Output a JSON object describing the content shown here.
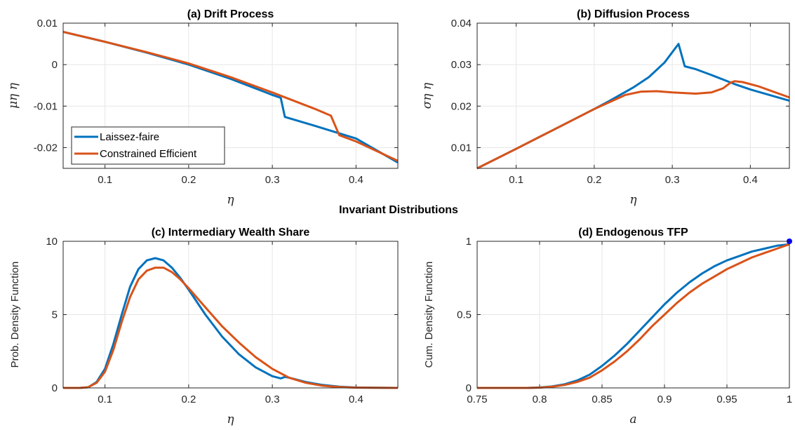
{
  "suptitle": "Invariant Distributions",
  "chart_data": [
    {
      "id": "a",
      "type": "line",
      "title": "(a) Drift Process",
      "xlabel": "η",
      "ylabel": "μη η",
      "xlim": [
        0.05,
        0.45
      ],
      "ylim": [
        -0.025,
        0.01
      ],
      "xticks": [
        0.1,
        0.2,
        0.3,
        0.4
      ],
      "xtick_labels": [
        "0.1",
        "0.2",
        "0.3",
        "0.4"
      ],
      "yticks": [
        -0.02,
        -0.01,
        0,
        0.01
      ],
      "ytick_labels": [
        "-0.02",
        "-0.01",
        "0",
        "0.01"
      ],
      "grid": true,
      "legend": {
        "position": "bottom-left",
        "entries": [
          "Laissez-faire",
          "Constrained Efficient"
        ]
      },
      "series": [
        {
          "name": "Laissez-faire",
          "color": "#0072BD",
          "x": [
            0.05,
            0.1,
            0.15,
            0.2,
            0.25,
            0.3,
            0.31,
            0.315,
            0.35,
            0.4,
            0.45
          ],
          "y": [
            0.0079,
            0.0055,
            0.0029,
            0.0,
            -0.0034,
            -0.0073,
            -0.008,
            -0.0126,
            -0.0147,
            -0.0178,
            -0.0236
          ]
        },
        {
          "name": "Constrained Efficient",
          "color": "#D95319",
          "x": [
            0.05,
            0.1,
            0.15,
            0.2,
            0.25,
            0.3,
            0.35,
            0.37,
            0.38,
            0.4,
            0.45
          ],
          "y": [
            0.0079,
            0.0055,
            0.003,
            0.0003,
            -0.003,
            -0.0067,
            -0.0106,
            -0.0123,
            -0.017,
            -0.0185,
            -0.0232
          ]
        }
      ]
    },
    {
      "id": "b",
      "type": "line",
      "title": "(b) Diffusion Process",
      "xlabel": "η",
      "ylabel": "ση η",
      "xlim": [
        0.05,
        0.45
      ],
      "ylim": [
        0.005,
        0.04
      ],
      "xticks": [
        0.1,
        0.2,
        0.3,
        0.4
      ],
      "xtick_labels": [
        "0.1",
        "0.2",
        "0.3",
        "0.4"
      ],
      "yticks": [
        0.01,
        0.02,
        0.03,
        0.04
      ],
      "ytick_labels": [
        "0.01",
        "0.02",
        "0.03",
        "0.04"
      ],
      "grid": true,
      "series": [
        {
          "name": "Laissez-faire",
          "color": "#0072BD",
          "x": [
            0.05,
            0.1,
            0.15,
            0.2,
            0.22,
            0.25,
            0.27,
            0.29,
            0.308,
            0.316,
            0.33,
            0.35,
            0.38,
            0.4,
            0.45
          ],
          "y": [
            0.005,
            0.0097,
            0.0145,
            0.0193,
            0.0213,
            0.0245,
            0.027,
            0.0305,
            0.035,
            0.0296,
            0.0289,
            0.0275,
            0.0253,
            0.024,
            0.0213
          ]
        },
        {
          "name": "Constrained Efficient",
          "color": "#D95319",
          "x": [
            0.05,
            0.1,
            0.15,
            0.2,
            0.22,
            0.24,
            0.26,
            0.28,
            0.3,
            0.33,
            0.35,
            0.365,
            0.375,
            0.38,
            0.39,
            0.41,
            0.45
          ],
          "y": [
            0.005,
            0.0097,
            0.0145,
            0.0193,
            0.021,
            0.0227,
            0.0235,
            0.0236,
            0.0233,
            0.023,
            0.0233,
            0.0243,
            0.0257,
            0.026,
            0.0258,
            0.0248,
            0.0221
          ]
        }
      ]
    },
    {
      "id": "c",
      "type": "line",
      "title": "(c) Intermediary Wealth Share",
      "xlabel": "η",
      "ylabel": "Prob. Density Function",
      "xlim": [
        0.05,
        0.45
      ],
      "ylim": [
        0,
        10
      ],
      "xticks": [
        0.1,
        0.2,
        0.3,
        0.4
      ],
      "xtick_labels": [
        "0.1",
        "0.2",
        "0.3",
        "0.4"
      ],
      "yticks": [
        0,
        5,
        10
      ],
      "ytick_labels": [
        "0",
        "5",
        "10"
      ],
      "grid": true,
      "series": [
        {
          "name": "Laissez-faire",
          "color": "#0072BD",
          "x": [
            0.05,
            0.07,
            0.08,
            0.09,
            0.1,
            0.11,
            0.12,
            0.13,
            0.14,
            0.15,
            0.16,
            0.17,
            0.18,
            0.19,
            0.2,
            0.22,
            0.24,
            0.26,
            0.28,
            0.3,
            0.31,
            0.315,
            0.32,
            0.34,
            0.36,
            0.38,
            0.4,
            0.45
          ],
          "y": [
            0,
            0,
            0.05,
            0.4,
            1.3,
            3.0,
            5.0,
            6.9,
            8.1,
            8.7,
            8.85,
            8.7,
            8.2,
            7.5,
            6.7,
            5.0,
            3.5,
            2.3,
            1.4,
            0.8,
            0.65,
            0.75,
            0.7,
            0.4,
            0.2,
            0.08,
            0.03,
            0
          ]
        },
        {
          "name": "Constrained Efficient",
          "color": "#D95319",
          "x": [
            0.05,
            0.07,
            0.08,
            0.09,
            0.1,
            0.11,
            0.12,
            0.13,
            0.14,
            0.15,
            0.16,
            0.17,
            0.18,
            0.19,
            0.2,
            0.22,
            0.24,
            0.26,
            0.28,
            0.3,
            0.32,
            0.34,
            0.36,
            0.38,
            0.4,
            0.45
          ],
          "y": [
            0,
            0,
            0.05,
            0.35,
            1.1,
            2.6,
            4.5,
            6.2,
            7.4,
            8.0,
            8.2,
            8.2,
            7.9,
            7.4,
            6.8,
            5.5,
            4.2,
            3.1,
            2.1,
            1.3,
            0.7,
            0.35,
            0.15,
            0.06,
            0.02,
            0
          ]
        }
      ]
    },
    {
      "id": "d",
      "type": "line",
      "title": "(d) Endogenous TFP",
      "xlabel": "a",
      "ylabel": "Cum. Density Function",
      "xlim": [
        0.75,
        1
      ],
      "ylim": [
        0,
        1
      ],
      "xticks": [
        0.75,
        0.8,
        0.85,
        0.9,
        0.95,
        1
      ],
      "xtick_labels": [
        "0.75",
        "0.8",
        "0.85",
        "0.9",
        "0.95",
        "1"
      ],
      "yticks": [
        0,
        0.5,
        1
      ],
      "ytick_labels": [
        "0",
        "0.5",
        "1"
      ],
      "grid": true,
      "series": [
        {
          "name": "Laissez-faire",
          "color": "#0072BD",
          "x": [
            0.75,
            0.79,
            0.8,
            0.81,
            0.82,
            0.83,
            0.84,
            0.85,
            0.86,
            0.87,
            0.88,
            0.89,
            0.9,
            0.91,
            0.92,
            0.93,
            0.94,
            0.95,
            0.96,
            0.97,
            0.98,
            0.99,
            1.0
          ],
          "y": [
            0,
            0,
            0.003,
            0.01,
            0.025,
            0.05,
            0.09,
            0.15,
            0.22,
            0.3,
            0.39,
            0.48,
            0.57,
            0.65,
            0.72,
            0.78,
            0.83,
            0.87,
            0.9,
            0.93,
            0.95,
            0.97,
            0.98
          ]
        },
        {
          "name": "Constrained Efficient",
          "color": "#D95319",
          "x": [
            0.75,
            0.79,
            0.8,
            0.81,
            0.82,
            0.83,
            0.84,
            0.85,
            0.86,
            0.87,
            0.88,
            0.89,
            0.9,
            0.91,
            0.92,
            0.93,
            0.94,
            0.95,
            0.96,
            0.97,
            0.98,
            0.99,
            1.0
          ],
          "y": [
            0,
            0,
            0.002,
            0.008,
            0.02,
            0.04,
            0.07,
            0.12,
            0.18,
            0.25,
            0.33,
            0.42,
            0.5,
            0.58,
            0.65,
            0.71,
            0.76,
            0.81,
            0.85,
            0.89,
            0.92,
            0.95,
            0.98
          ]
        },
        {
          "name": "",
          "type": "point",
          "color": "#0000FF",
          "x": [
            1.0
          ],
          "y": [
            1.0
          ]
        }
      ]
    }
  ]
}
